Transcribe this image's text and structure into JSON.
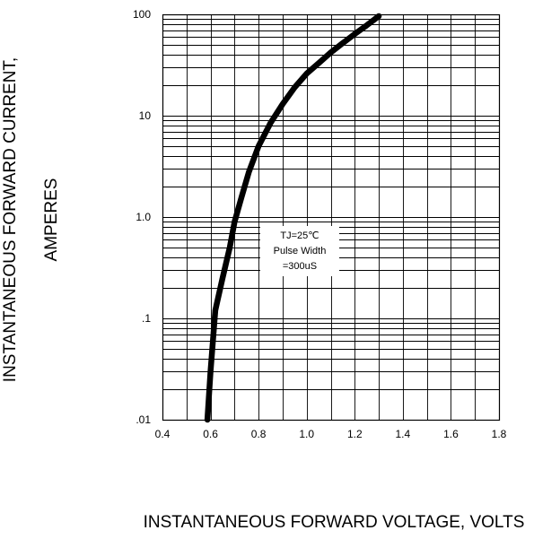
{
  "chart_data": {
    "type": "line",
    "title": "",
    "xlabel": "INSTANTANEOUS FORWARD VOLTAGE,  VOLTS",
    "ylabel_line1": "INSTANTANEOUS FORWARD CURRENT,",
    "ylabel_line2": "AMPERES",
    "x_scale": "linear",
    "y_scale": "log",
    "xlim": [
      0.4,
      1.8
    ],
    "ylim": [
      0.01,
      100
    ],
    "grid": true,
    "x_ticks": [
      "0.4",
      "0.6",
      "0.8",
      "1.0",
      "1.2",
      "1.4",
      "1.6",
      "1.8"
    ],
    "y_ticks": [
      ".01",
      ".1",
      "1.0",
      "10",
      "100"
    ],
    "annotation": [
      "TJ=25℃",
      "Pulse Width",
      "=300uS"
    ],
    "series": [
      {
        "x": [
          0.587,
          0.6,
          0.62,
          0.65,
          0.68,
          0.7,
          0.73,
          0.76,
          0.8,
          0.85,
          0.9,
          0.95,
          1.0,
          1.05,
          1.1,
          1.15,
          1.2,
          1.25,
          1.3
        ],
        "y": [
          0.01,
          0.03,
          0.12,
          0.25,
          0.5,
          0.9,
          1.6,
          2.8,
          5.0,
          8.5,
          13.0,
          19.0,
          26.0,
          33.0,
          42.0,
          52.0,
          64.0,
          78.0,
          96.0
        ]
      }
    ],
    "line_color": "#000000"
  }
}
